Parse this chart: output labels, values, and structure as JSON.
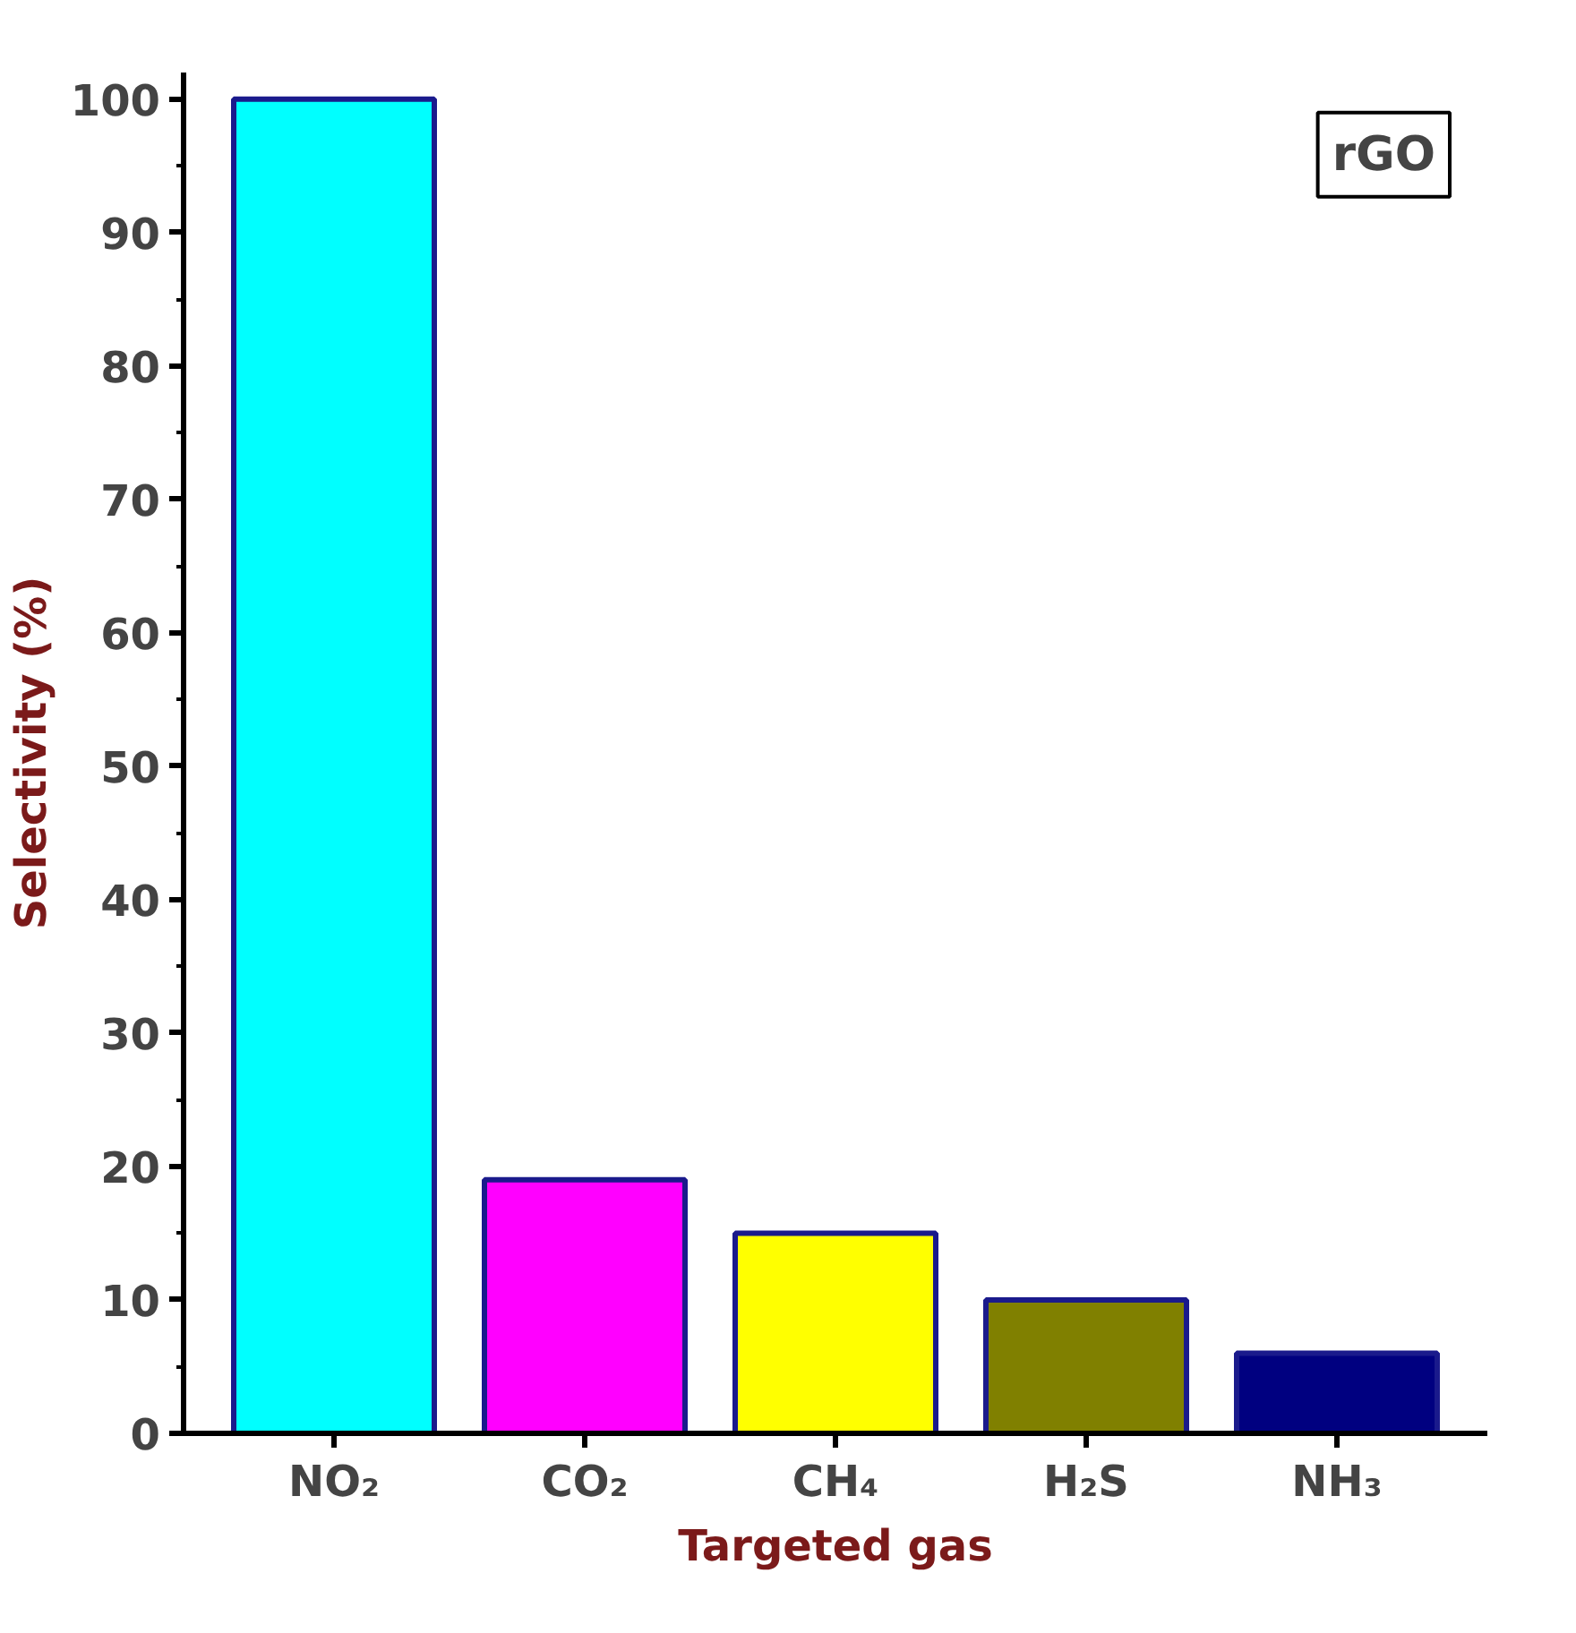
{
  "chart_data": {
    "type": "bar",
    "xlabel": "Targeted gas",
    "ylabel": "Selectivity (%)",
    "categories": [
      "NO₂",
      "CO₂",
      "CH₄",
      "H₂S",
      "NH₃"
    ],
    "values": [
      100,
      19,
      15,
      10,
      6
    ],
    "colors": [
      "#00ffff",
      "#ff00ff",
      "#ffff00",
      "#808000",
      "#000080"
    ],
    "ylim": [
      0,
      102
    ],
    "yticks": [
      0,
      10,
      20,
      30,
      40,
      50,
      60,
      70,
      80,
      90,
      100
    ],
    "annotations": [
      "rGO"
    ]
  }
}
